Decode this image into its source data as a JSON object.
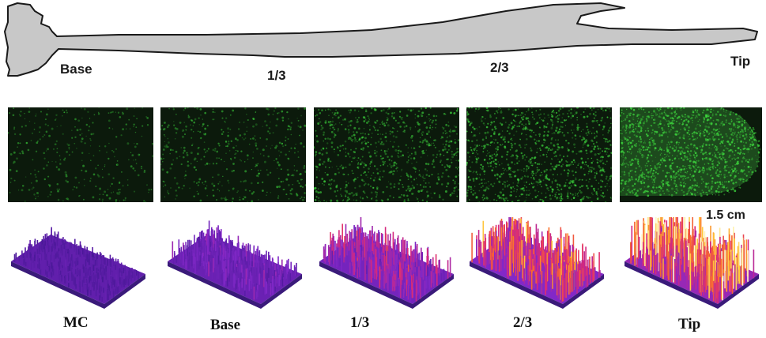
{
  "root_diagram": {
    "labels": {
      "base": "Base",
      "third": "1/3",
      "two_thirds": "2/3",
      "tip": "Tip"
    }
  },
  "micrographs": {
    "panels": [
      {
        "id": "mc",
        "density": 0.18,
        "brightness": 0.45
      },
      {
        "id": "base",
        "density": 0.25,
        "brightness": 0.55
      },
      {
        "id": "third",
        "density": 0.45,
        "brightness": 0.7
      },
      {
        "id": "two_thirds",
        "density": 0.6,
        "brightness": 0.85
      },
      {
        "id": "tip",
        "density": 0.9,
        "brightness": 1.0
      }
    ]
  },
  "scale_bar": {
    "label": "1.5 cm"
  },
  "surface_plots": {
    "panels": [
      {
        "id": "mc",
        "label": "MC",
        "intensity": 0.15
      },
      {
        "id": "base",
        "label": "Base",
        "intensity": 0.3
      },
      {
        "id": "third",
        "label": "1/3",
        "intensity": 0.5
      },
      {
        "id": "two_thirds",
        "label": "2/3",
        "intensity": 0.72
      },
      {
        "id": "tip",
        "label": "Tip",
        "intensity": 0.95
      }
    ]
  },
  "colors": {
    "root_fill": "#c8c8c8",
    "root_stroke": "#1a1a1a",
    "fluor_green": "#3dd63d",
    "micro_bg": "#0c1a0c"
  }
}
